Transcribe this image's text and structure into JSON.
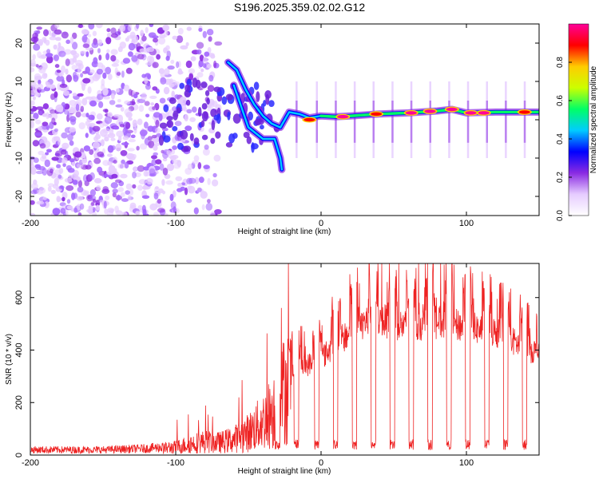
{
  "title": "S196.2025.359.02.02.G12",
  "chart_data": [
    {
      "type": "heatmap",
      "name": "spectrogram",
      "xlabel": "Height of straight line (km)",
      "ylabel": "Frequency (Hz)",
      "xlim": [
        -200,
        150
      ],
      "ylim": [
        -25,
        25
      ],
      "xticks": [
        -200,
        -100,
        0,
        100
      ],
      "yticks": [
        -20,
        -10,
        0,
        10,
        20
      ],
      "colorbar": {
        "label": "Normalized spectral amplitude",
        "range": [
          0.0,
          1.0
        ],
        "ticks": [
          "0.0",
          "0.2",
          "0.4",
          "0.6",
          "0.8"
        ],
        "colors": [
          "#ffffff",
          "#e6ccff",
          "#8a2be2",
          "#0000ff",
          "#00ccff",
          "#00ff66",
          "#ccff00",
          "#ffcc00",
          "#ff0000",
          "#ff0099"
        ]
      },
      "dominant_line": [
        {
          "x": -64,
          "y": 15
        },
        {
          "x": -58,
          "y": 13
        },
        {
          "x": -52,
          "y": 8
        },
        {
          "x": -46,
          "y": 4
        },
        {
          "x": -40,
          "y": 1
        },
        {
          "x": -34,
          "y": -1
        },
        {
          "x": -28,
          "y": -2
        },
        {
          "x": -22,
          "y": 2
        },
        {
          "x": -15,
          "y": 1.5
        },
        {
          "x": -8,
          "y": 0.5
        },
        {
          "x": 0,
          "y": 1
        },
        {
          "x": 10,
          "y": 0.8
        },
        {
          "x": 20,
          "y": 1
        },
        {
          "x": 40,
          "y": 1.5
        },
        {
          "x": 60,
          "y": 1.8
        },
        {
          "x": 80,
          "y": 2.3
        },
        {
          "x": 90,
          "y": 2.7
        },
        {
          "x": 100,
          "y": 1.8
        },
        {
          "x": 120,
          "y": 2
        },
        {
          "x": 140,
          "y": 2
        },
        {
          "x": 150,
          "y": 2
        }
      ],
      "secondary_line": [
        {
          "x": -60,
          "y": 9
        },
        {
          "x": -50,
          "y": -2
        },
        {
          "x": -40,
          "y": -5
        },
        {
          "x": -32,
          "y": -5
        },
        {
          "x": -28,
          "y": -10
        },
        {
          "x": -27,
          "y": -13
        }
      ],
      "hot_spots": [
        {
          "x": -8,
          "y": 0,
          "value": 0.9
        },
        {
          "x": 15,
          "y": 0.8,
          "value": 0.95
        },
        {
          "x": 38,
          "y": 1.5,
          "value": 0.9
        },
        {
          "x": 62,
          "y": 1.8,
          "value": 0.95
        },
        {
          "x": 75,
          "y": 2.2,
          "value": 0.95
        },
        {
          "x": 90,
          "y": 2.7,
          "value": 0.95
        },
        {
          "x": 103,
          "y": 1.8,
          "value": 0.95
        },
        {
          "x": 112,
          "y": 1.8,
          "value": 0.95
        },
        {
          "x": 140,
          "y": 2,
          "value": 0.9
        }
      ]
    },
    {
      "type": "line",
      "name": "snr",
      "xlabel": "Height of straight line (km)",
      "ylabel": "SNR (10 * v/v)",
      "xlim": [
        -200,
        150
      ],
      "ylim": [
        0,
        730
      ],
      "xticks": [
        -200,
        -100,
        0,
        100
      ],
      "yticks": [
        0,
        200,
        400,
        600
      ],
      "color": "#ee2222",
      "envelope": [
        {
          "x": -200,
          "y": 20
        },
        {
          "x": -150,
          "y": 20
        },
        {
          "x": -120,
          "y": 25
        },
        {
          "x": -100,
          "y": 35
        },
        {
          "x": -90,
          "y": 50
        },
        {
          "x": -80,
          "y": 60
        },
        {
          "x": -70,
          "y": 55
        },
        {
          "x": -60,
          "y": 70
        },
        {
          "x": -50,
          "y": 100
        },
        {
          "x": -40,
          "y": 150
        },
        {
          "x": -30,
          "y": 220
        },
        {
          "x": -25,
          "y": 300
        },
        {
          "x": -20,
          "y": 330
        },
        {
          "x": -10,
          "y": 350
        },
        {
          "x": 0,
          "y": 380
        },
        {
          "x": 10,
          "y": 430
        },
        {
          "x": 20,
          "y": 480
        },
        {
          "x": 30,
          "y": 520
        },
        {
          "x": 40,
          "y": 530
        },
        {
          "x": 60,
          "y": 500
        },
        {
          "x": 80,
          "y": 520
        },
        {
          "x": 100,
          "y": 500
        },
        {
          "x": 120,
          "y": 480
        },
        {
          "x": 140,
          "y": 420
        },
        {
          "x": 150,
          "y": 400
        }
      ],
      "dropout_centers": [
        -30,
        -17,
        -3,
        10,
        23,
        36,
        49,
        62,
        75,
        88,
        101,
        114,
        127,
        140
      ]
    }
  ]
}
